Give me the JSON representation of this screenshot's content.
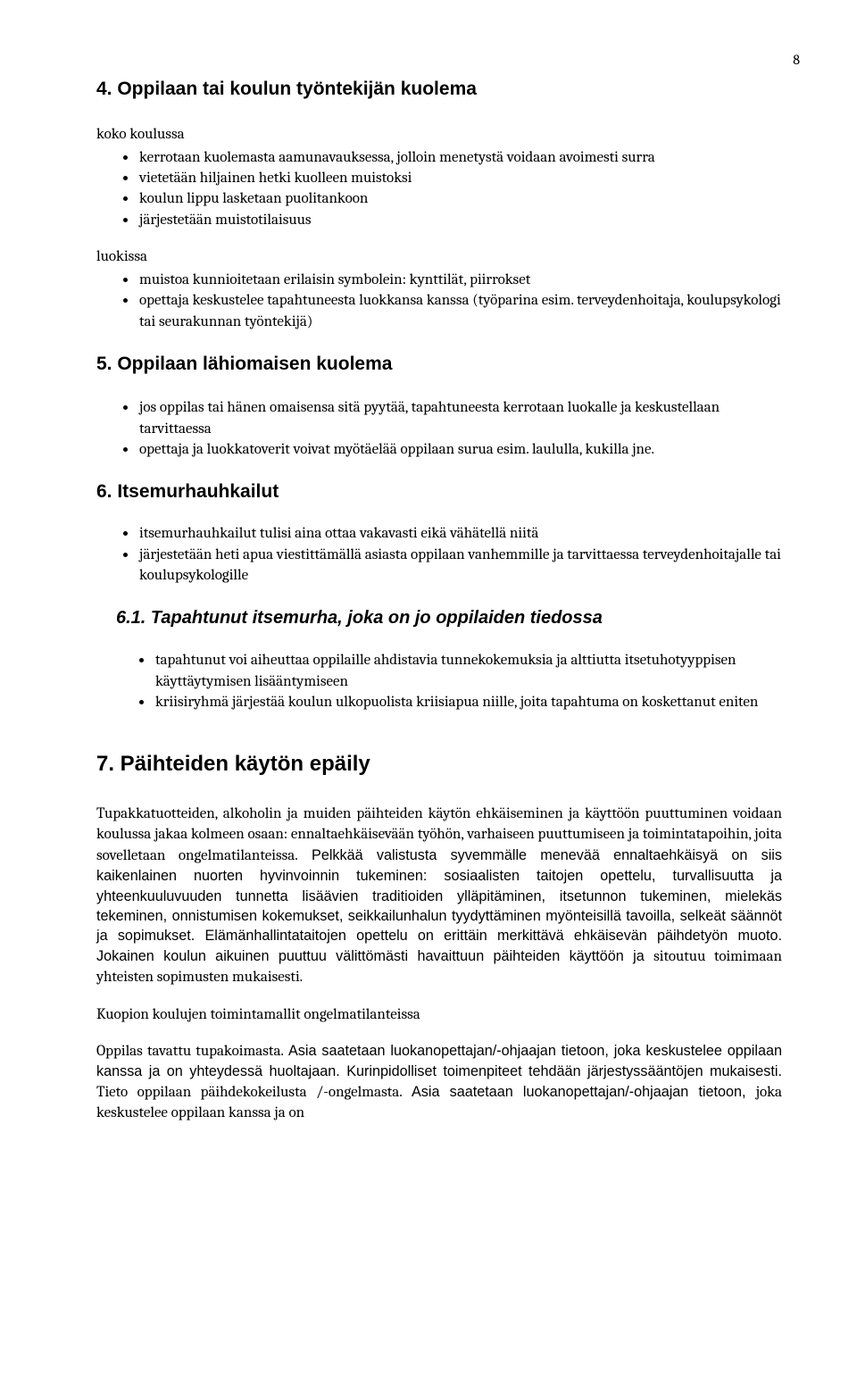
{
  "page_number": "8",
  "s4": {
    "heading": "4.  Oppilaan tai koulun työntekijän kuolema",
    "lead1": "koko koulussa",
    "bul1": [
      "kerrotaan kuolemasta aamunavauksessa, jolloin menetystä voidaan avoimesti surra",
      "vietetään hiljainen hetki kuolleen muistoksi",
      "koulun lippu lasketaan puolitankoon",
      "järjestetään muistotilaisuus"
    ],
    "lead2": "luokissa",
    "bul2": [
      "muistoa kunnioitetaan erilaisin symbolein: kynttilät, piirrokset",
      "opettaja keskustelee tapahtuneesta luokkansa kanssa (työparina esim. terveydenhoitaja, koulupsykologi tai seurakunnan työntekijä)"
    ]
  },
  "s5": {
    "heading": "5.  Oppilaan lähiomaisen kuolema",
    "bul": [
      "jos oppilas tai hänen omaisensa sitä pyytää, tapahtuneesta kerrotaan luokalle ja keskustellaan tarvittaessa",
      "opettaja ja luokkatoverit voivat myötäelää oppilaan surua esim. laululla, kukilla jne."
    ]
  },
  "s6": {
    "heading": "6.  Itsemurhauhkailut",
    "bul": [
      "itsemurhauhkailut tulisi aina ottaa vakavasti eikä vähätellä niitä",
      "järjestetään heti apua viestittämällä asiasta oppilaan vanhemmille ja tarvittaessa terveydenhoitajalle tai koulupsykologille"
    ],
    "s61_heading": "6.1.   Tapahtunut itsemurha, joka on jo oppilaiden tiedossa",
    "s61_bul": [
      "tapahtunut voi aiheuttaa oppilaille ahdistavia tunnekokemuksia ja alttiutta itsetuhotyyppisen käyttäytymisen lisääntymiseen",
      "kriisiryhmä järjestää koulun ulkopuolista kriisiapua niille, joita tapahtuma on koskettanut eniten"
    ]
  },
  "s7": {
    "heading": "7.  Päihteiden käytön epäily",
    "p1_a": "Tupakkatuotteiden, alkoholin ja muiden päihteiden käytön ehkäiseminen ja käyttöön puuttuminen voidaan koulussa jakaa kolmeen osaan: ennaltaehkäisevään työhön, varhaiseen puuttumiseen ja toimintatapoihin, joita sovelletaan ongelmatilanteissa.",
    "p1_b": " Pelkkää valistusta syvemmälle menevää ennaltaehkäisyä on siis kaikenlainen nuorten hyvinvoinnin tukeminen: sosiaalisten taitojen opettelu, turvallisuutta ja yhteenkuuluvuuden tunnetta lisäävien traditioiden ylläpitäminen, itsetunnon tukeminen, mielekäs tekeminen, onnistumisen kokemukset, seikkailunhalun tyydyttäminen myönteisillä tavoilla, selkeät säännöt ja sopimukset. Elämänhallintataitojen opettelu on erittäin merkittävä ehkäisevän päihdetyön muoto. Jokainen koulun aikuinen puuttuu välittömästi havaittuun päihteiden käyttöön ja ",
    "p1_c": "sitoutuu toimimaan yhteisten sopimusten mukaisesti.",
    "p2": "Kuopion koulujen toimintamallit ongelmatilanteissa",
    "p3_a": "Oppilas tavattu tupakoimasta.",
    "p3_b": " Asia saatetaan luokanopettajan/-ohjaajan tietoon, joka keskustelee oppilaan kanssa ja on yhteydessä huoltajaan. Kurinpidolliset toimenpiteet tehdään järjestyssääntöjen mukaisesti. ",
    "p3_c": "Tieto oppilaan päihdekokeilusta /-ongelmasta.",
    "p3_d": " Asia saatetaan luokanopettajan/-ohjaajan tietoon, ",
    "p3_e": "joka keskustelee oppilaan kanssa ja on"
  }
}
